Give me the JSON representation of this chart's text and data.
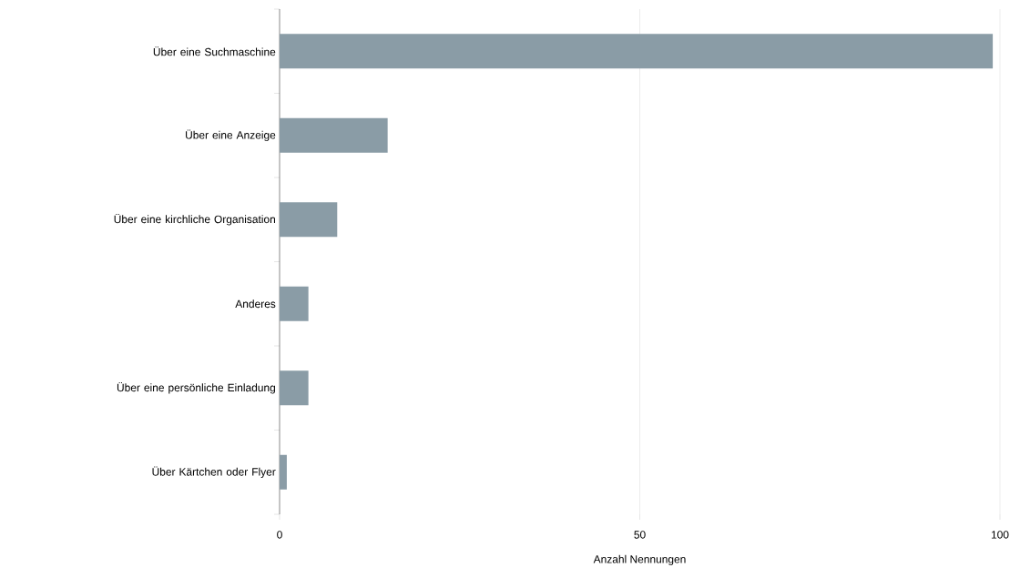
{
  "chart_data": {
    "type": "bar",
    "orientation": "horizontal",
    "categories": [
      "Über eine Suchmaschine",
      "Über eine Anzeige",
      "Über eine kirchliche Organisation",
      "Anderes",
      "Über eine persönliche Einladung",
      "Über Kärtchen oder Flyer"
    ],
    "values": [
      99,
      15,
      8,
      4,
      4,
      1
    ],
    "color": "#8a9ca6",
    "xlim": [
      0,
      100
    ],
    "xticks": [
      0,
      50,
      100
    ],
    "grid": "x",
    "xlabel": "Anzahl Nennungen"
  }
}
